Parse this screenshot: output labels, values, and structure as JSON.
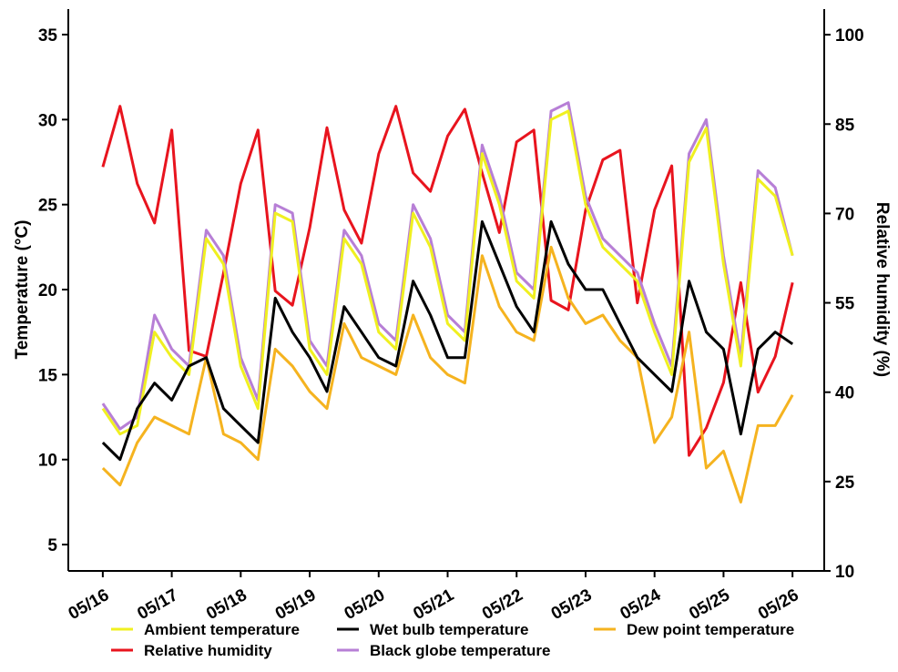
{
  "chart_data": {
    "type": "line",
    "y_label": "Temperature (°C)",
    "y2_label": "Relative humidity (%)",
    "x": [
      0,
      0.25,
      0.5,
      0.75,
      1,
      1.25,
      1.5,
      1.75,
      2,
      2.25,
      2.5,
      2.75,
      3,
      3.25,
      3.5,
      3.75,
      4,
      4.25,
      4.5,
      4.75,
      5,
      5.25,
      5.5,
      5.75,
      6,
      6.25,
      6.5,
      6.75,
      7,
      7.25,
      7.5,
      7.75,
      8,
      8.25,
      8.5,
      8.75,
      9,
      9.25,
      9.5,
      9.75,
      10
    ],
    "xlim": [
      -0.5,
      10.46
    ],
    "xticks": [
      {
        "value": 0,
        "label": "05/16"
      },
      {
        "value": 1,
        "label": "05/17"
      },
      {
        "value": 2,
        "label": "05/18"
      },
      {
        "value": 3,
        "label": "05/19"
      },
      {
        "value": 4,
        "label": "05/20"
      },
      {
        "value": 5,
        "label": "05/21"
      },
      {
        "value": 6,
        "label": "05/22"
      },
      {
        "value": 7,
        "label": "05/23"
      },
      {
        "value": 8,
        "label": "05/24"
      },
      {
        "value": 9,
        "label": "05/25"
      },
      {
        "value": 10,
        "label": "05/26"
      }
    ],
    "ylim": [
      3.45,
      36.5
    ],
    "yticks": [
      5,
      10,
      15,
      20,
      25,
      30,
      35
    ],
    "y2lim": [
      10,
      104.3
    ],
    "y2ticks": [
      10,
      25,
      40,
      55,
      70,
      85,
      100
    ],
    "series": [
      {
        "name": "Ambient temperature",
        "color": "#f0f020",
        "values": [
          13,
          11.5,
          12,
          17.5,
          16,
          15,
          23,
          21.5,
          15.5,
          13,
          24.5,
          24,
          16.5,
          15,
          23,
          21.5,
          17.5,
          16.5,
          24.5,
          22.5,
          18,
          17,
          28,
          25,
          20.5,
          19.5,
          30,
          30.5,
          25,
          22.5,
          21.5,
          20.5,
          17.5,
          15,
          27.5,
          29.5,
          21.5,
          15.5,
          26.5,
          25.5,
          22
        ]
      },
      {
        "name": "Wet bulb temperature",
        "color": "#000000",
        "values": [
          11,
          10,
          13,
          14.5,
          13.5,
          15.5,
          16,
          13,
          12,
          11,
          19.5,
          17.5,
          16,
          14,
          19,
          17.5,
          16,
          15.5,
          20.5,
          18.5,
          16,
          16,
          24,
          21.5,
          19,
          17.5,
          24,
          21.5,
          20,
          20,
          18,
          16,
          15,
          14,
          20.5,
          17.5,
          16.5,
          11.5,
          16.5,
          17.5,
          16.8
        ]
      },
      {
        "name": "Dew point temperature",
        "color": "#f5b31f",
        "values": [
          9.5,
          8.5,
          11,
          12.5,
          12,
          11.5,
          16,
          11.5,
          11,
          10,
          16.5,
          15.5,
          14,
          13,
          18,
          16,
          15.5,
          15,
          18.5,
          16,
          15,
          14.5,
          22,
          19,
          17.5,
          17,
          22.5,
          19.5,
          18,
          18.5,
          17,
          16,
          11,
          12.5,
          17.5,
          9.5,
          10.5,
          7.5,
          12,
          12,
          13.8
        ]
      },
      {
        "name": "Relative humidity",
        "color": "#e8141e",
        "axis": "y2",
        "values": [
          77.8,
          88,
          75,
          68.4,
          84,
          47,
          46,
          60,
          75,
          84,
          57,
          54.6,
          67.6,
          84.4,
          70.6,
          65,
          80,
          88,
          76.8,
          73.7,
          83,
          87.5,
          76.8,
          66.8,
          82,
          84,
          55.4,
          53.8,
          70.6,
          79,
          80.6,
          55,
          70.6,
          78,
          29.4,
          34,
          41.6,
          58.4,
          40,
          46,
          58.4
        ]
      },
      {
        "name": "Black globe temperature",
        "color": "#b77fd6",
        "values": [
          13.3,
          11.8,
          12.5,
          18.5,
          16.5,
          15.5,
          23.5,
          22,
          16,
          13.5,
          25,
          24.5,
          17,
          15.5,
          23.5,
          22,
          18,
          17,
          25,
          23,
          18.5,
          17.5,
          28.5,
          25.5,
          21,
          20,
          30.5,
          31,
          25.5,
          23,
          22,
          21,
          18,
          15.5,
          28,
          30,
          22,
          16,
          27,
          26,
          22
        ]
      }
    ]
  }
}
